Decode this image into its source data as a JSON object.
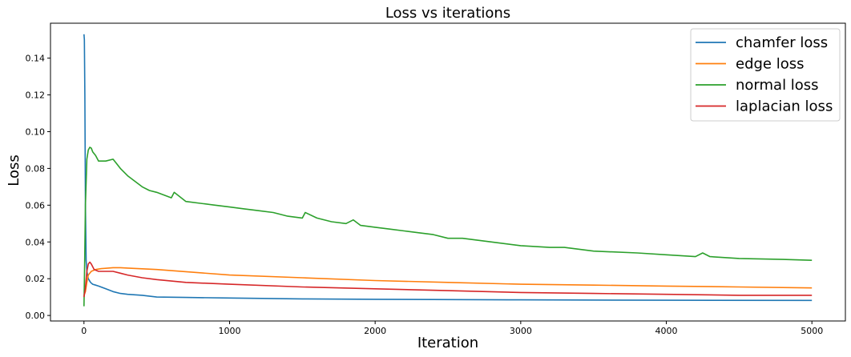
{
  "chart_data": {
    "type": "line",
    "title": "Loss vs iterations",
    "xlabel": "Iteration",
    "ylabel": "Loss",
    "xlim": [
      -230,
      5230
    ],
    "ylim": [
      -0.003,
      0.159
    ],
    "xticks": [
      0,
      1000,
      2000,
      3000,
      4000,
      5000
    ],
    "xtick_labels": [
      "0",
      "1000",
      "2000",
      "3000",
      "4000",
      "5000"
    ],
    "yticks": [
      0.0,
      0.02,
      0.04,
      0.06,
      0.08,
      0.1,
      0.12,
      0.14
    ],
    "ytick_labels": [
      "0.00",
      "0.02",
      "0.04",
      "0.06",
      "0.08",
      "0.10",
      "0.12",
      "0.14"
    ],
    "grid": false,
    "legend_position": "top-right",
    "series": [
      {
        "name": "chamfer loss",
        "color": "#1f77b4",
        "x": [
          0,
          3,
          6,
          10,
          15,
          20,
          30,
          45,
          60,
          80,
          100,
          150,
          200,
          250,
          300,
          400,
          500,
          700,
          1000,
          1500,
          2000,
          3000,
          4000,
          5000
        ],
        "y": [
          0.153,
          0.15,
          0.12,
          0.06,
          0.03,
          0.024,
          0.02,
          0.018,
          0.017,
          0.0165,
          0.016,
          0.0145,
          0.013,
          0.012,
          0.0115,
          0.011,
          0.01,
          0.0098,
          0.0095,
          0.009,
          0.0088,
          0.0085,
          0.0083,
          0.0082
        ]
      },
      {
        "name": "edge loss",
        "color": "#ff7f0e",
        "x": [
          0,
          10,
          20,
          30,
          50,
          80,
          120,
          200,
          250,
          300,
          500,
          1000,
          1500,
          2000,
          2500,
          3000,
          3500,
          4000,
          4500,
          5000
        ],
        "y": [
          0.011,
          0.013,
          0.018,
          0.022,
          0.024,
          0.025,
          0.0255,
          0.026,
          0.026,
          0.0258,
          0.025,
          0.022,
          0.0205,
          0.019,
          0.018,
          0.017,
          0.0165,
          0.016,
          0.0155,
          0.015
        ]
      },
      {
        "name": "normal loss",
        "color": "#2ca02c",
        "x": [
          0,
          5,
          10,
          20,
          30,
          40,
          50,
          60,
          80,
          100,
          150,
          200,
          220,
          250,
          300,
          350,
          400,
          450,
          500,
          600,
          620,
          700,
          800,
          900,
          1000,
          1100,
          1200,
          1300,
          1400,
          1500,
          1520,
          1600,
          1700,
          1800,
          1850,
          1900,
          2000,
          2100,
          2200,
          2300,
          2400,
          2500,
          2600,
          2800,
          3000,
          3200,
          3300,
          3500,
          3800,
          4000,
          4200,
          4250,
          4300,
          4500,
          4800,
          5000
        ],
        "y": [
          0.005,
          0.03,
          0.06,
          0.085,
          0.09,
          0.0915,
          0.091,
          0.089,
          0.087,
          0.084,
          0.084,
          0.085,
          0.083,
          0.08,
          0.076,
          0.073,
          0.07,
          0.068,
          0.067,
          0.064,
          0.067,
          0.062,
          0.061,
          0.06,
          0.059,
          0.058,
          0.057,
          0.056,
          0.054,
          0.053,
          0.056,
          0.053,
          0.051,
          0.05,
          0.052,
          0.049,
          0.048,
          0.047,
          0.046,
          0.045,
          0.044,
          0.042,
          0.042,
          0.04,
          0.038,
          0.037,
          0.037,
          0.035,
          0.034,
          0.033,
          0.032,
          0.034,
          0.032,
          0.031,
          0.0305,
          0.03
        ]
      },
      {
        "name": "laplacian loss",
        "color": "#d62728",
        "x": [
          0,
          10,
          20,
          30,
          40,
          50,
          70,
          100,
          150,
          200,
          250,
          300,
          400,
          500,
          700,
          1000,
          1500,
          2000,
          2500,
          3000,
          3500,
          4000,
          4500,
          5000
        ],
        "y": [
          0.01,
          0.015,
          0.024,
          0.028,
          0.029,
          0.028,
          0.025,
          0.024,
          0.024,
          0.024,
          0.023,
          0.022,
          0.0205,
          0.0195,
          0.018,
          0.017,
          0.0155,
          0.0145,
          0.0135,
          0.0125,
          0.012,
          0.0115,
          0.011,
          0.011
        ]
      }
    ]
  }
}
